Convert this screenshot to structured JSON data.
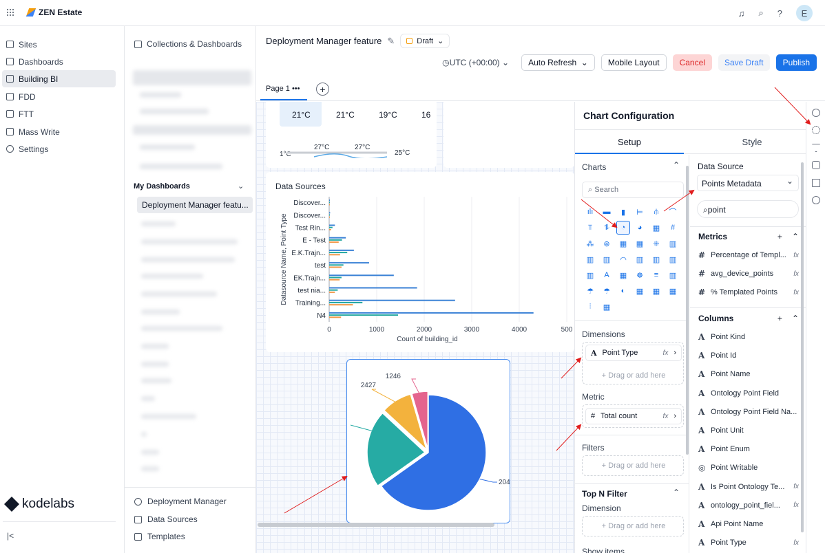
{
  "app": {
    "title": "ZEN Estate",
    "user_initial": "E"
  },
  "sidebar": {
    "items": [
      {
        "label": "Sites",
        "icon": "building-icon"
      },
      {
        "label": "Dashboards",
        "icon": "dashboard-icon"
      },
      {
        "label": "Building BI",
        "icon": "chart-icon"
      },
      {
        "label": "FDD",
        "icon": "fdd-icon"
      },
      {
        "label": "FTT",
        "icon": "clipboard-icon"
      },
      {
        "label": "Mass Write",
        "icon": "edit-icon"
      },
      {
        "label": "Settings",
        "icon": "gear-icon"
      }
    ],
    "brand": "kodelabs"
  },
  "collections": {
    "header": "Collections & Dashboards",
    "my_dashboards": "My Dashboards",
    "active_dashboard": "Deployment Manager featu...",
    "bottom": [
      "Deployment Manager",
      "Data Sources",
      "Templates"
    ]
  },
  "editor": {
    "title": "Deployment Manager feature",
    "status": "Draft",
    "timezone": "UTC (+00:00)",
    "auto_refresh": "Auto Refresh",
    "mobile_layout": "Mobile Layout",
    "cancel": "Cancel",
    "save_draft": "Save Draft",
    "publish": "Publish",
    "page_tab": "Page 1"
  },
  "temps": {
    "cells": [
      "21°C",
      "21°C",
      "19°C",
      "16"
    ],
    "spark_labels": [
      "27°C",
      "27°C"
    ],
    "left_label": "1°C",
    "right_label": "25°C"
  },
  "chart_data": [
    {
      "type": "bar",
      "orientation": "horizontal",
      "title": "Data Sources",
      "xlabel": "Count of building_id",
      "ylabel": "Datasource Name, Point Type",
      "xlim": [
        0,
        5000
      ],
      "xticks": [
        "0",
        "1000",
        "2000",
        "3000",
        "4000",
        "500"
      ],
      "categories": [
        "Discover...",
        "Discover...",
        "Test Rin...",
        "E - Test",
        "E.K.Trajn...",
        "test",
        "EK.Trajn...",
        "test nia...",
        "Training...",
        "N4"
      ],
      "series": [
        {
          "color": "#3b82d6",
          "values": [
            10,
            20,
            120,
            350,
            520,
            840,
            1360,
            1850,
            2650,
            4300
          ]
        },
        {
          "color": "#22a7a0",
          "values": [
            5,
            10,
            70,
            270,
            380,
            300,
            260,
            180,
            700,
            1450
          ]
        },
        {
          "color": "#f2994a",
          "values": [
            3,
            5,
            40,
            200,
            230,
            260,
            220,
            120,
            500,
            250
          ]
        }
      ]
    },
    {
      "type": "pie",
      "labels": [
        "204",
        "2427",
        "1246"
      ],
      "slices": [
        {
          "value": 2040,
          "color": "#2f6fe4"
        },
        {
          "value": 680,
          "color": "#26aba4"
        },
        {
          "value": 270,
          "color": "#f3b23d"
        },
        {
          "value": 140,
          "color": "#e4648e"
        }
      ]
    }
  ],
  "config": {
    "title": "Chart Configuration",
    "tabs": [
      "Setup",
      "Style"
    ],
    "charts_label": "Charts",
    "search_placeholder": "Search",
    "dimensions_label": "Dimensions",
    "dimension_chip": "Point Type",
    "metric_label": "Metric",
    "metric_chip": "Total count",
    "drop_hint": "+ Drag or add here",
    "filters_label": "Filters",
    "topn_label": "Top N Filter",
    "topn_dimension": "Dimension",
    "show_items": "Show items",
    "data_source_label": "Data Source",
    "data_source_value": "Points Metadata",
    "field_search": "point",
    "metrics_label": "Metrics",
    "metrics": [
      "Percentage of Templ...",
      "avg_device_points",
      "% Templated Points"
    ],
    "columns_label": "Columns",
    "columns": [
      {
        "name": "Point Kind",
        "fx": false
      },
      {
        "name": "Point Id",
        "fx": false
      },
      {
        "name": "Point Name",
        "fx": false
      },
      {
        "name": "Ontology Point Field",
        "fx": false
      },
      {
        "name": "Ontology Point Field Na...",
        "fx": false
      },
      {
        "name": "Point Unit",
        "fx": false
      },
      {
        "name": "Point Enum",
        "fx": false
      },
      {
        "name": "Point Writable",
        "fx": false
      },
      {
        "name": "Is Point Ontology Te...",
        "fx": true
      },
      {
        "name": "ontology_point_fiel...",
        "fx": true
      },
      {
        "name": "Api Point Name",
        "fx": false
      },
      {
        "name": "Point Type",
        "fx": true
      }
    ]
  }
}
